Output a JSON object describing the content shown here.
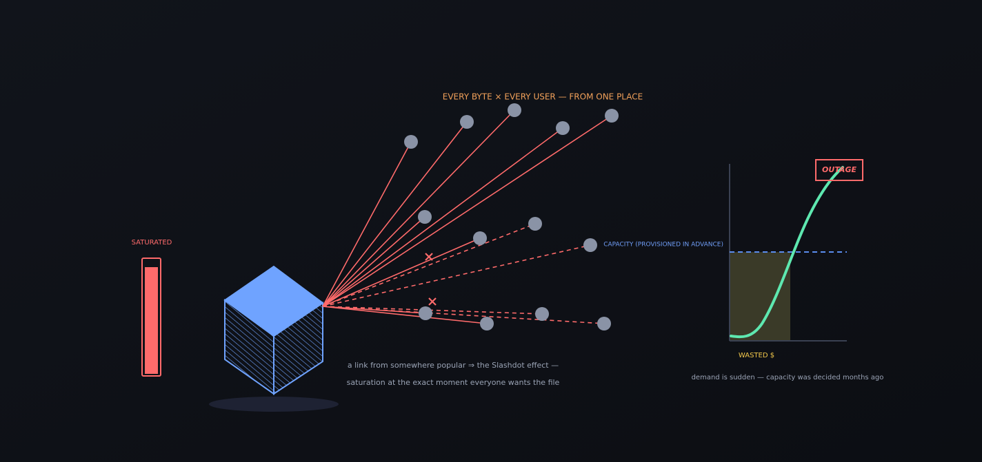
{
  "header": {
    "title": "EVERY BYTE × EVERY USER — FROM ONE PLACE"
  },
  "server": {
    "meter_label": "SATURATED"
  },
  "caption": {
    "lines": [
      "a link from somewhere popular ⇒ the Slashdot effect —",
      "saturation at the exact moment everyone wants the file"
    ]
  },
  "chart": {
    "capacity_label": "CAPACITY (PROVISIONED IN ADVANCE)",
    "outage_label": "OUTAGE",
    "wasted_label": "WASTED $",
    "caption": "demand is sudden — capacity was decided months ago"
  }
}
